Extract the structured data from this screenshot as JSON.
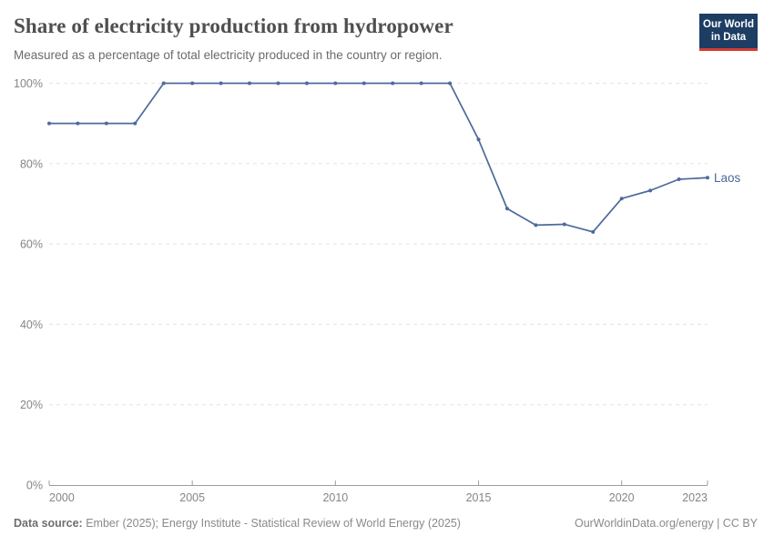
{
  "header": {
    "title": "Share of electricity production from hydropower",
    "subtitle": "Measured as a percentage of total electricity produced in the country or region.",
    "logo": {
      "line1": "Our World",
      "line2": "in Data",
      "bg_color": "#1d3d63",
      "accent_color": "#d73c32"
    }
  },
  "chart_data": {
    "type": "line",
    "title": "Share of electricity production from hydropower",
    "subtitle": "Measured as a percentage of total electricity produced in the country or region.",
    "unit": "%",
    "grid": "horizontal-dashed",
    "legend_position": "end-of-line-label",
    "xlim": [
      2000,
      2023
    ],
    "ylim": [
      0,
      100
    ],
    "xticks": [
      2000,
      2005,
      2010,
      2015,
      2020,
      2023
    ],
    "yticks": [
      0,
      20,
      40,
      60,
      80,
      100
    ],
    "ytick_suffix": "%",
    "x": [
      2000,
      2001,
      2002,
      2003,
      2004,
      2005,
      2006,
      2007,
      2008,
      2009,
      2010,
      2011,
      2012,
      2013,
      2014,
      2015,
      2016,
      2017,
      2018,
      2019,
      2020,
      2021,
      2022,
      2023
    ],
    "series": [
      {
        "name": "Laos",
        "color": "#4c6a9c",
        "values": [
          90,
          90,
          90,
          90,
          100,
          100,
          100,
          100,
          100,
          100,
          100,
          100,
          100,
          100,
          100,
          86,
          68.8,
          64.7,
          64.9,
          63,
          71.3,
          73.3,
          76.1,
          76.5
        ]
      }
    ],
    "colors": {
      "gridline": "#e3e3e3",
      "axis": "#9e9e9e",
      "tick_label": "#858585"
    }
  },
  "footer": {
    "datasource_label": "Data source:",
    "datasource_text": " Ember (2025); Energy Institute - Statistical Review of World Energy (2025)",
    "origin_link": "OurWorldinData.org/energy",
    "separator": " | ",
    "license": "CC BY"
  }
}
